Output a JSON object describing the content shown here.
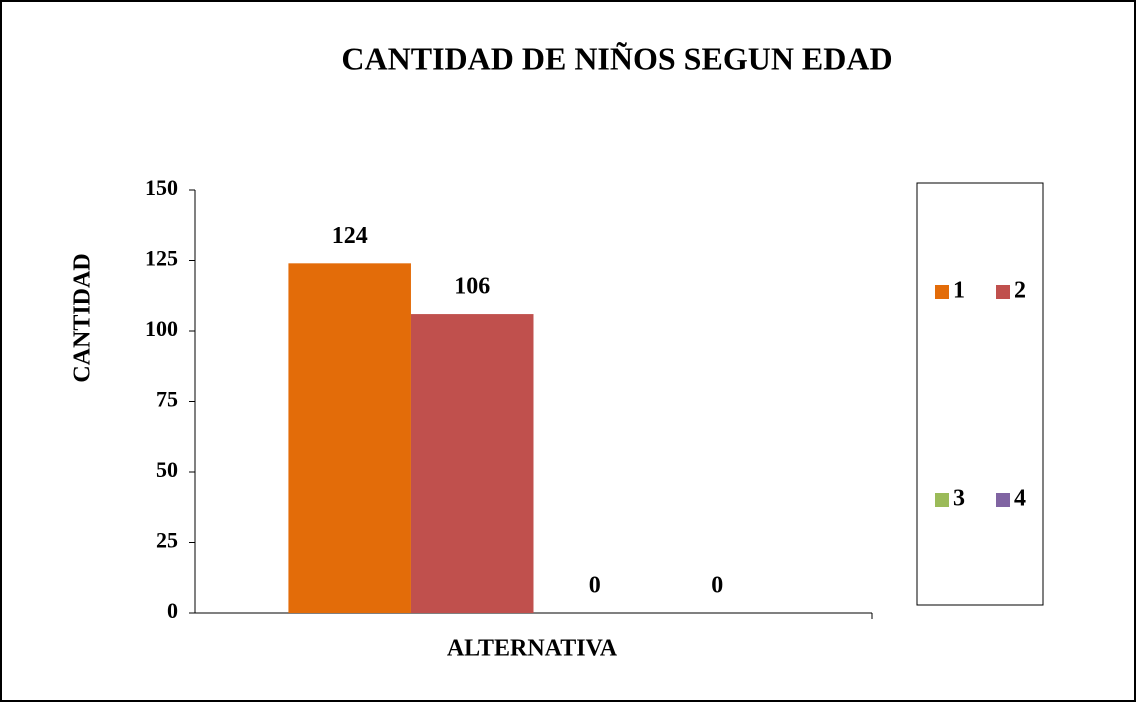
{
  "chart_data": {
    "type": "bar",
    "title": "CANTIDAD DE NIÑOS SEGUN EDAD",
    "x_label": "ALTERNATIVA",
    "y_label": "CANTIDAD",
    "categories": [
      null
    ],
    "series": [
      {
        "name": "1",
        "color": "#e36c09",
        "values": [
          124
        ]
      },
      {
        "name": "2",
        "color": "#c0504d",
        "values": [
          106
        ]
      },
      {
        "name": "3",
        "color": "#9bbb59",
        "values": [
          0
        ]
      },
      {
        "name": "4",
        "color": "#8064a2",
        "values": [
          0
        ]
      }
    ],
    "ylim": [
      0,
      150
    ],
    "yticks": [
      0,
      25,
      50,
      75,
      100,
      125,
      150
    ],
    "grid": false,
    "legend": "right"
  }
}
